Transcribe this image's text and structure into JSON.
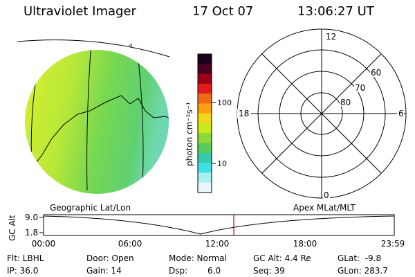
{
  "header": {
    "title": "Ultraviolet Imager",
    "date": "17 Oct 07",
    "time": "13:06:27 UT"
  },
  "colorbar": {
    "unit_label": "photon cm⁻²s⁻¹",
    "ticks": [
      "100",
      "10"
    ],
    "colors": [
      "#1a001a",
      "#4a0020",
      "#9a0018",
      "#e21a1a",
      "#f06a1a",
      "#f8a010",
      "#f0d818",
      "#c8e818",
      "#8ad83a",
      "#58cc58",
      "#38c8b0",
      "#40e0e0",
      "#a8f0f0",
      "#e8f8f8"
    ]
  },
  "polar_plot": {
    "mlt_labels": [
      "12",
      "18",
      "6",
      "0"
    ],
    "lat_labels": [
      "60",
      "70",
      "80"
    ]
  },
  "timeline": {
    "left_title": "Geographic Lat/Lon",
    "right_title": "Apex MLat/MLT",
    "axis_label": "GC Alt",
    "y_values": [
      "9.0",
      "1.8"
    ],
    "time_ticks": [
      "00:00",
      "06:00",
      "12:00",
      "18:00",
      "23:59"
    ],
    "current_time_marker": "13:06",
    "marker_color": "#e00000"
  },
  "info": {
    "row1": {
      "flt": "Flt: LBHL",
      "door": "Door: Open",
      "mode": "Mode: Normal",
      "gcalt": "GC Alt: 4.4 Re",
      "glat": "GLat:  -9.8"
    },
    "row2": {
      "ip": "IP: 36.0",
      "gain": "Gain: 14",
      "dsp_label": "Dsp:",
      "dsp_value": "6.0",
      "seq": "Seq: 39",
      "glon": "GLon: 283.7"
    }
  }
}
